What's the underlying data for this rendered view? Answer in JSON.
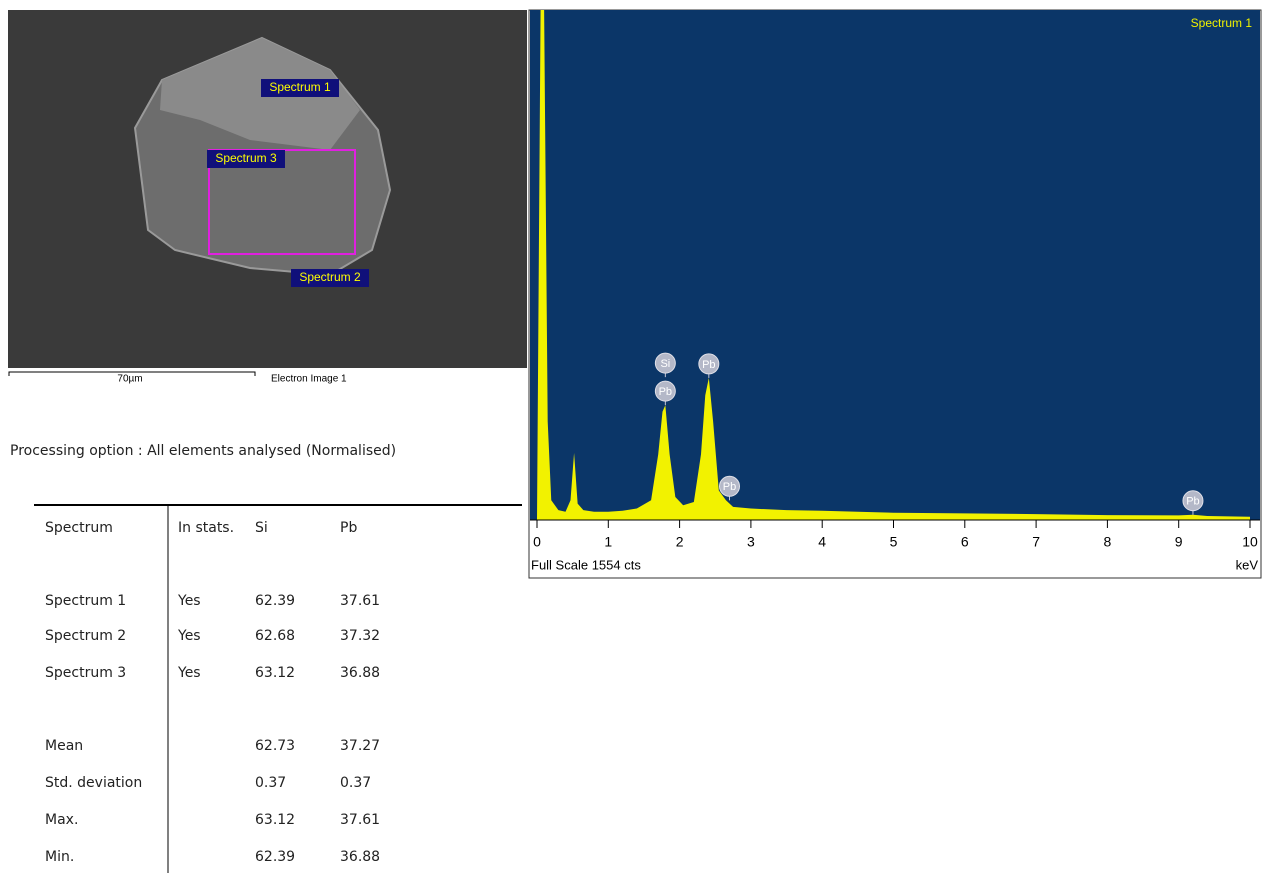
{
  "image": {
    "labels": [
      "Spectrum 1",
      "Spectrum 3",
      "Spectrum 2"
    ],
    "scale_bar": "70µm",
    "caption": "Electron Image 1"
  },
  "processing_option": "Processing option : All elements analysed (Normalised)",
  "table": {
    "header": [
      "Spectrum",
      "In stats.",
      "Si",
      "Pb"
    ],
    "rows": [
      [
        "Spectrum 1",
        "Yes",
        62.39,
        37.61
      ],
      [
        "Spectrum 2",
        "Yes",
        62.68,
        37.32
      ],
      [
        "Spectrum 3",
        "Yes",
        63.12,
        36.88
      ]
    ],
    "stats": [
      [
        "Mean",
        62.73,
        37.27
      ],
      [
        "Std. deviation",
        0.37,
        0.37
      ],
      [
        "Max.",
        63.12,
        37.61
      ],
      [
        "Min.",
        62.39,
        36.88
      ]
    ]
  },
  "chart_data": {
    "type": "area",
    "footer": "Full Scale 1554 cts",
    "xlabel": "keV",
    "x": [
      0,
      0.05,
      0.1,
      0.15,
      0.2,
      0.3,
      0.4,
      0.47,
      0.52,
      0.57,
      0.65,
      0.8,
      1.0,
      1.2,
      1.4,
      1.6,
      1.7,
      1.76,
      1.8,
      1.86,
      1.94,
      2.05,
      2.2,
      2.3,
      2.36,
      2.41,
      2.47,
      2.55,
      2.65,
      2.75,
      3.0,
      3.5,
      4,
      4.5,
      5,
      6,
      7,
      8,
      9,
      9.2,
      9.4,
      10
    ],
    "series": [
      {
        "name": "Spectrum 1",
        "color": "#f2f200",
        "values": [
          0,
          1554,
          1554,
          300,
          60,
          30,
          25,
          60,
          204,
          50,
          30,
          25,
          25,
          28,
          35,
          60,
          200,
          330,
          350,
          200,
          70,
          45,
          55,
          200,
          380,
          433,
          300,
          90,
          60,
          40,
          35,
          30,
          28,
          25,
          22,
          20,
          18,
          15,
          14,
          16,
          12,
          10
        ]
      }
    ],
    "annotations": [
      {
        "label": "Si",
        "x": 1.8
      },
      {
        "label": "Pb",
        "x": 1.8
      },
      {
        "label": "Pb",
        "x": 2.41
      },
      {
        "label": "Pb",
        "x": 2.7
      },
      {
        "label": "Pb",
        "x": 9.2
      }
    ],
    "xlim": [
      0,
      10
    ],
    "xticks": [
      0,
      1,
      2,
      3,
      4,
      5,
      6,
      7,
      8,
      9,
      10
    ],
    "ylim": [
      0,
      1554
    ],
    "background": "#0b3668"
  }
}
